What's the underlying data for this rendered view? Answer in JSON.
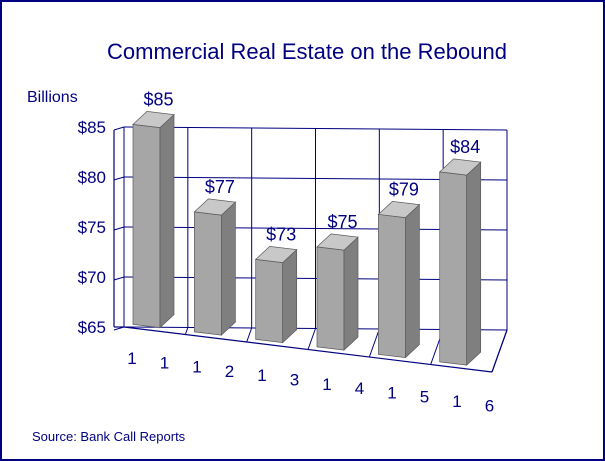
{
  "chart_data": {
    "type": "bar",
    "title": "Commercial Real Estate on the Rebound",
    "units_label": "Billions",
    "source": "Source:  Bank Call Reports",
    "categories": [
      "1",
      "2",
      "3",
      "4",
      "5",
      "6"
    ],
    "axis_tick_labels": [
      "1",
      "1",
      "1",
      "2",
      "1",
      "3",
      "1",
      "4",
      "1",
      "5",
      "1",
      "6"
    ],
    "values": [
      85,
      77,
      73,
      75,
      79,
      84
    ],
    "data_labels": [
      "$85",
      "$77",
      "$73",
      "$75",
      "$79",
      "$84"
    ],
    "ylim": [
      65,
      85
    ],
    "yticks": [
      65,
      70,
      75,
      80,
      85
    ],
    "ytick_labels": [
      "$65",
      "$70",
      "$75",
      "$80",
      "$85"
    ],
    "grid": true,
    "three_d": true,
    "colors": {
      "text": "#000080",
      "bar_front": "#a6a6a6",
      "bar_side": "#7f7f7f",
      "bar_top": "#c8c8c8"
    }
  }
}
